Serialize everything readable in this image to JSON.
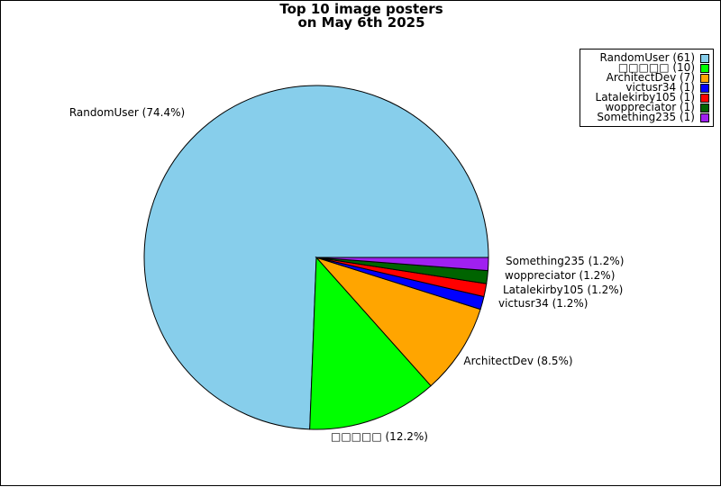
{
  "chart_data": {
    "type": "pie",
    "title_lines": [
      "Top 10 image posters",
      "on May 6th 2025"
    ],
    "slices": [
      {
        "name": "RandomUser",
        "count": 61,
        "percent": "74.4%",
        "color": "#87ceeb"
      },
      {
        "name": "□□□□□",
        "count": 10,
        "percent": "12.2%",
        "color": "#00ff00"
      },
      {
        "name": "ArchitectDev",
        "count": 7,
        "percent": "8.5%",
        "color": "#ffa500"
      },
      {
        "name": "victusr34",
        "count": 1,
        "percent": "1.2%",
        "color": "#0000ff"
      },
      {
        "name": "Latalekirby105",
        "count": 1,
        "percent": "1.2%",
        "color": "#ff0000"
      },
      {
        "name": "woppreciator",
        "count": 1,
        "percent": "1.2%",
        "color": "#006400"
      },
      {
        "name": "Something235",
        "count": 1,
        "percent": "1.2%",
        "color": "#a020f0"
      }
    ],
    "slice_labels": [
      "RandomUser (74.4%)",
      "□□□□□ (12.2%)",
      "ArchitectDev (8.5%)",
      "victusr34 (1.2%)",
      "Latalekirby105 (1.2%)",
      "woppreciator (1.2%)",
      "Something235 (1.2%)"
    ],
    "legend_labels": [
      "RandomUser (61)",
      "□□□□□ (10)",
      "ArchitectDev (7)",
      "victusr34 (1)",
      "Latalekirby105 (1)",
      "woppreciator (1)",
      "Something235 (1)"
    ],
    "legend_position": "top-right"
  }
}
